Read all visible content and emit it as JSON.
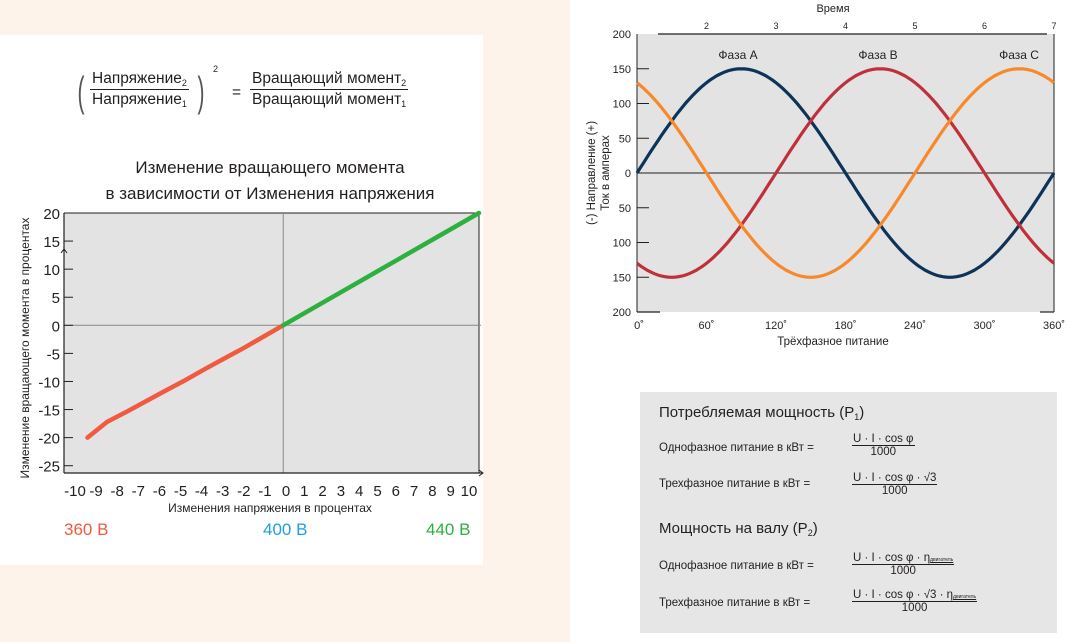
{
  "torque_formula": {
    "lhs_num": "Напряжение",
    "lhs_num_sub": "2",
    "lhs_den": "Напряжение",
    "lhs_den_sub": "1",
    "exponent": "2",
    "equals": "=",
    "rhs_num": "Вращающий момент",
    "rhs_num_sub": "2",
    "rhs_den": "Вращающий момент",
    "rhs_den_sub": "1"
  },
  "voltage_labels": [
    {
      "text": "360 В",
      "color": "#f05a40"
    },
    {
      "text": "400 В",
      "color": "#1ea0dc"
    },
    {
      "text": "440 В",
      "color": "#2db040"
    }
  ],
  "power_box": {
    "p1_title": "Потребляемая мощность (P",
    "p1_sub": "1",
    "close": ")",
    "p2_title": "Мощность на валу (P",
    "p2_sub": "2",
    "single_label": "Однофазное питание в кВт =",
    "three_label": "Трехфазное питание в кВт =",
    "f1_num": "U · I · cos φ",
    "f2_num": "U · I · cos φ · √3",
    "f3_num": "U · I · cos φ · η",
    "f4_num": "U · I · cos φ · √3 · η",
    "eta_sub": "двигатель",
    "den": "1000"
  },
  "chart_data": [
    {
      "type": "line",
      "title": [
        "Изменение вращающего момента",
        "в зависимости от Изменения напряжения"
      ],
      "xlabel": "Изменения напряжения в процентах",
      "ylabel": "Изменение вращающего момента в процентах",
      "xlim": [
        -11.2,
        10.0
      ],
      "ylim": [
        -26.3,
        20
      ],
      "xticks": [
        -10,
        -9,
        -8,
        -7,
        -6,
        -5,
        -4,
        -3,
        -2,
        -1,
        0,
        1,
        2,
        3,
        4,
        5,
        6,
        7,
        8,
        9,
        10
      ],
      "yticks": [
        20,
        15,
        10,
        5,
        0,
        -5,
        -10,
        -15,
        -20,
        -25
      ],
      "grid": false,
      "series": [
        {
          "name": "360 В",
          "color": "#f05a40",
          "x": [
            -10,
            -9,
            -8,
            -7,
            -6,
            -5,
            -4,
            -3,
            -2,
            -1,
            0
          ],
          "y": [
            -20,
            -17.2,
            -15.4,
            -13.5,
            -11.6,
            -9.75,
            -7.8,
            -5.9,
            -4,
            -2,
            0
          ]
        },
        {
          "name": "440 В",
          "color": "#2db040",
          "x": [
            0,
            2,
            4,
            6,
            8,
            10
          ],
          "y": [
            0,
            4,
            8,
            12,
            16,
            20
          ]
        }
      ]
    },
    {
      "type": "line",
      "xlabel": "Трёхфазное питание",
      "ylabel": [
        "(-) Направление (+)",
        "Ток в амперах"
      ],
      "top_axis_label": "Время",
      "top_ticks": [
        2,
        3,
        4,
        5,
        6,
        7
      ],
      "xlim": [
        0,
        360
      ],
      "ylim": [
        -200,
        200
      ],
      "xticks": [
        "0˚",
        "60˚",
        "120˚",
        "180˚",
        "240˚",
        "300˚",
        "360˚"
      ],
      "yticks": [
        "200",
        "150",
        "100",
        "50",
        "0",
        "50",
        "100",
        "150",
        "200"
      ],
      "series": [
        {
          "name": "Фаза A",
          "color": "#0d3358",
          "amplitude": 150,
          "phase_deg": 0
        },
        {
          "name": "Фаза B",
          "color": "#c0303a",
          "amplitude": 150,
          "phase_deg": -120
        },
        {
          "name": "Фаза C",
          "color": "#f7892a",
          "amplitude": 150,
          "phase_deg": 120
        }
      ]
    }
  ]
}
